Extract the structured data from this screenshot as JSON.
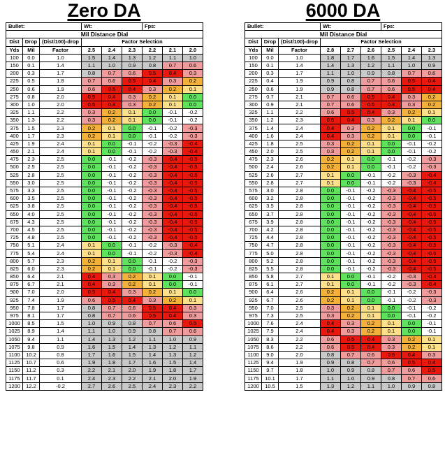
{
  "left": {
    "title": "Zero DA",
    "bullet_label": "Bullet:",
    "wt_label": "Wt:",
    "fps_label": "Fps:",
    "table_title": "Mil Distance Dial",
    "headers": [
      "Dist",
      "Drop",
      "(Dist/100)-drop",
      "Factor Selection"
    ],
    "subheaders": [
      "Yds",
      "Mil",
      "Factor"
    ],
    "factors": [
      "2.5",
      "2.4",
      "2.3",
      "2.2",
      "2.1",
      "2.0"
    ],
    "rows": [
      [
        "100",
        "0.0",
        "1.0",
        "1.5",
        "1.4",
        "1.3",
        "1.2",
        "1.1",
        "1.0"
      ],
      [
        "150",
        "0.1",
        "1.4",
        "1.1",
        "1.0",
        "0.9",
        "0.8",
        "0.7",
        "0.6"
      ],
      [
        "200",
        "0.3",
        "1.7",
        "0.8",
        "0.7",
        "0.6",
        "0.5",
        "0.4",
        "0.3"
      ],
      [
        "225",
        "0.5",
        "1.8",
        "0.7",
        "0.6",
        "0.5",
        "0.4",
        "0.3",
        "0.2"
      ],
      [
        "250",
        "0.6",
        "1.9",
        "0.6",
        "0.5",
        "0.4",
        "0.3",
        "0.2",
        "0.1"
      ],
      [
        "275",
        "0.8",
        "2.0",
        "0.5",
        "0.4",
        "0.3",
        "0.2",
        "0.1",
        "0.0"
      ],
      [
        "300",
        "1.0",
        "2.0",
        "0.5",
        "0.4",
        "0.3",
        "0.2",
        "0.1",
        "0.0"
      ],
      [
        "325",
        "1.1",
        "2.2",
        "0.3",
        "0.2",
        "0.1",
        "0.0",
        "-0.1",
        "-0.2"
      ],
      [
        "350",
        "1.3",
        "2.2",
        "0.3",
        "0.2",
        "0.1",
        "0.0",
        "-0.1",
        "-0.2"
      ],
      [
        "375",
        "1.5",
        "2.3",
        "0.2",
        "0.1",
        "0.0",
        "-0.1",
        "-0.2",
        "-0.3"
      ],
      [
        "400",
        "1.7",
        "2.3",
        "0.2",
        "0.1",
        "0.0",
        "-0.1",
        "-0.2",
        "-0.3"
      ],
      [
        "425",
        "1.9",
        "2.4",
        "0.1",
        "0.0",
        "-0.1",
        "-0.2",
        "-0.3",
        "-0.4"
      ],
      [
        "450",
        "2.1",
        "2.4",
        "0.1",
        "0.0",
        "-0.1",
        "-0.2",
        "-0.3",
        "-0.4"
      ],
      [
        "475",
        "2.3",
        "2.5",
        "0.0",
        "-0.1",
        "-0.2",
        "-0.3",
        "-0.4",
        "-0.5"
      ],
      [
        "500",
        "2.5",
        "2.5",
        "0.0",
        "-0.1",
        "-0.2",
        "-0.3",
        "-0.4",
        "-0.5"
      ],
      [
        "525",
        "2.8",
        "2.5",
        "0.0",
        "-0.1",
        "-0.2",
        "-0.3",
        "-0.4",
        "-0.5"
      ],
      [
        "550",
        "3.0",
        "2.5",
        "0.0",
        "-0.1",
        "-0.2",
        "-0.3",
        "-0.4",
        "-0.5"
      ],
      [
        "575",
        "3.3",
        "2.5",
        "0.0",
        "-0.1",
        "-0.2",
        "-0.3",
        "-0.4",
        "-0.5"
      ],
      [
        "600",
        "3.5",
        "2.5",
        "0.0",
        "-0.1",
        "-0.2",
        "-0.3",
        "-0.4",
        "-0.5"
      ],
      [
        "625",
        "3.8",
        "2.5",
        "0.0",
        "-0.1",
        "-0.2",
        "-0.3",
        "-0.4",
        "-0.5"
      ],
      [
        "650",
        "4.0",
        "2.5",
        "0.0",
        "-0.1",
        "-0.2",
        "-0.3",
        "-0.4",
        "-0.5"
      ],
      [
        "675",
        "4.3",
        "2.5",
        "0.0",
        "-0.1",
        "-0.2",
        "-0.3",
        "-0.4",
        "-0.5"
      ],
      [
        "700",
        "4.5",
        "2.5",
        "0.0",
        "-0.1",
        "-0.2",
        "-0.3",
        "-0.4",
        "-0.5"
      ],
      [
        "725",
        "4.8",
        "2.5",
        "0.0",
        "-0.1",
        "-0.2",
        "-0.3",
        "-0.4",
        "-0.5"
      ],
      [
        "750",
        "5.1",
        "2.4",
        "0.1",
        "0.0",
        "-0.1",
        "-0.2",
        "-0.3",
        "-0.4"
      ],
      [
        "775",
        "5.4",
        "2.4",
        "0.1",
        "0.0",
        "-0.1",
        "-0.2",
        "-0.3",
        "-0.4"
      ],
      [
        "800",
        "5.7",
        "2.3",
        "0.2",
        "0.1",
        "0.0",
        "-0.1",
        "-0.2",
        "-0.3"
      ],
      [
        "825",
        "6.0",
        "2.3",
        "0.2",
        "0.1",
        "0.0",
        "-0.1",
        "-0.2",
        "-0.3"
      ],
      [
        "850",
        "6.4",
        "2.1",
        "0.4",
        "0.3",
        "0.2",
        "0.1",
        "0.0",
        "-0.1"
      ],
      [
        "875",
        "6.7",
        "2.1",
        "0.4",
        "0.3",
        "0.2",
        "0.1",
        "0.0",
        "-0.1"
      ],
      [
        "900",
        "7.0",
        "2.0",
        "0.5",
        "0.4",
        "0.3",
        "0.2",
        "0.1",
        "0.0"
      ],
      [
        "925",
        "7.4",
        "1.9",
        "0.6",
        "0.5",
        "0.4",
        "0.3",
        "0.2",
        "0.1"
      ],
      [
        "950",
        "7.8",
        "1.7",
        "0.8",
        "0.7",
        "0.6",
        "0.5",
        "0.4",
        "0.3"
      ],
      [
        "975",
        "8.1",
        "1.7",
        "0.8",
        "0.7",
        "0.6",
        "0.5",
        "0.4",
        "0.3"
      ],
      [
        "1000",
        "8.5",
        "1.5",
        "1.0",
        "0.9",
        "0.8",
        "0.7",
        "0.6",
        "0.5"
      ],
      [
        "1025",
        "8.9",
        "1.4",
        "1.1",
        "1.0",
        "0.9",
        "0.8",
        "0.7",
        "0.6"
      ],
      [
        "1050",
        "9.4",
        "1.1",
        "1.4",
        "1.3",
        "1.2",
        "1.1",
        "1.0",
        "0.9"
      ],
      [
        "1075",
        "9.8",
        "0.9",
        "1.6",
        "1.5",
        "1.4",
        "1.3",
        "1.2",
        "1.1"
      ],
      [
        "1100",
        "10.2",
        "0.8",
        "1.7",
        "1.6",
        "1.5",
        "1.4",
        "1.3",
        "1.2"
      ],
      [
        "1125",
        "10.7",
        "0.6",
        "1.9",
        "1.8",
        "1.7",
        "1.6",
        "1.5",
        "1.4"
      ],
      [
        "1150",
        "11.2",
        "0.3",
        "2.2",
        "2.1",
        "2.0",
        "1.9",
        "1.8",
        "1.7"
      ],
      [
        "1175",
        "11.7",
        "0.1",
        "2.4",
        "2.3",
        "2.2",
        "2.1",
        "2.0",
        "1.9"
      ],
      [
        "1200",
        "12.2",
        "-0.2",
        "2.7",
        "2.6",
        "2.5",
        "2.4",
        "2.3",
        "2.2"
      ]
    ]
  },
  "right": {
    "title": "6000 DA",
    "bullet_label": "Bullet:",
    "wt_label": "Wt:",
    "fps_label": "Fps:",
    "table_title": "Mil Distance Dial",
    "headers": [
      "Dist",
      "Drop",
      "(Dist/100)-drop",
      "Factor Selection"
    ],
    "subheaders": [
      "Yds",
      "Mil",
      "Factor"
    ],
    "factors": [
      "2.8",
      "2.7",
      "2.6",
      "2.5",
      "2.4",
      "2.3"
    ],
    "rows": [
      [
        "100",
        "0.0",
        "1.0",
        "1.8",
        "1.7",
        "1.6",
        "1.5",
        "1.4",
        "1.3"
      ],
      [
        "150",
        "0.1",
        "1.4",
        "1.4",
        "1.3",
        "1.2",
        "1.1",
        "1.0",
        "0.9"
      ],
      [
        "200",
        "0.3",
        "1.7",
        "1.1",
        "1.0",
        "0.9",
        "0.8",
        "0.7",
        "0.6"
      ],
      [
        "225",
        "0.4",
        "1.9",
        "0.9",
        "0.8",
        "0.7",
        "0.6",
        "0.5",
        "0.4"
      ],
      [
        "250",
        "0.6",
        "1.9",
        "0.9",
        "0.8",
        "0.7",
        "0.6",
        "0.5",
        "0.4"
      ],
      [
        "275",
        "0.7",
        "2.1",
        "0.7",
        "0.6",
        "0.5",
        "0.4",
        "0.3",
        "0.2"
      ],
      [
        "300",
        "0.9",
        "2.1",
        "0.7",
        "0.6",
        "0.5",
        "0.4",
        "0.3",
        "0.2"
      ],
      [
        "325",
        "1.1",
        "2.2",
        "0.6",
        "0.5",
        "0.4",
        "0.3",
        "0.2",
        "0.1"
      ],
      [
        "350",
        "1.2",
        "2.3",
        "0.5",
        "0.4",
        "0.3",
        "0.2",
        "0.1",
        "0.0"
      ],
      [
        "375",
        "1.4",
        "2.4",
        "0.4",
        "0.3",
        "0.2",
        "0.1",
        "0.0",
        "-0.1"
      ],
      [
        "400",
        "1.6",
        "2.4",
        "0.4",
        "0.3",
        "0.2",
        "0.1",
        "0.0",
        "-0.1"
      ],
      [
        "425",
        "1.8",
        "2.5",
        "0.3",
        "0.2",
        "0.1",
        "0.0",
        "-0.1",
        "-0.2"
      ],
      [
        "450",
        "2.0",
        "2.5",
        "0.3",
        "0.2",
        "0.1",
        "0.0",
        "-0.1",
        "-0.2"
      ],
      [
        "475",
        "2.3",
        "2.6",
        "0.2",
        "0.1",
        "0.0",
        "-0.1",
        "-0.2",
        "-0.3"
      ],
      [
        "500",
        "2.4",
        "2.6",
        "0.2",
        "0.1",
        "0.0",
        "-0.1",
        "-0.2",
        "-0.3"
      ],
      [
        "525",
        "2.6",
        "2.7",
        "0.1",
        "0.0",
        "-0.1",
        "-0.2",
        "-0.3",
        "-0.4"
      ],
      [
        "550",
        "2.8",
        "2.7",
        "0.1",
        "0.0",
        "-0.1",
        "-0.2",
        "-0.3",
        "-0.4"
      ],
      [
        "575",
        "3.0",
        "2.8",
        "0.0",
        "-0.1",
        "-0.2",
        "-0.3",
        "-0.4",
        "-0.5"
      ],
      [
        "600",
        "3.2",
        "2.8",
        "0.0",
        "-0.1",
        "-0.2",
        "-0.3",
        "-0.4",
        "-0.5"
      ],
      [
        "625",
        "3.5",
        "2.8",
        "0.0",
        "-0.1",
        "-0.2",
        "-0.3",
        "-0.4",
        "-0.5"
      ],
      [
        "650",
        "3.7",
        "2.8",
        "0.0",
        "-0.1",
        "-0.2",
        "-0.3",
        "-0.4",
        "-0.5"
      ],
      [
        "675",
        "3.9",
        "2.8",
        "0.0",
        "-0.1",
        "-0.2",
        "-0.3",
        "-0.4",
        "-0.5"
      ],
      [
        "700",
        "4.2",
        "2.8",
        "0.0",
        "-0.1",
        "-0.2",
        "-0.3",
        "-0.4",
        "-0.5"
      ],
      [
        "725",
        "4.4",
        "2.8",
        "0.0",
        "-0.1",
        "-0.2",
        "-0.3",
        "-0.4",
        "-0.5"
      ],
      [
        "750",
        "4.7",
        "2.8",
        "0.0",
        "-0.1",
        "-0.2",
        "-0.3",
        "-0.4",
        "-0.5"
      ],
      [
        "775",
        "5.0",
        "2.8",
        "0.0",
        "-0.1",
        "-0.2",
        "-0.3",
        "-0.4",
        "-0.5"
      ],
      [
        "800",
        "5.2",
        "2.8",
        "0.0",
        "-0.1",
        "-0.2",
        "-0.3",
        "-0.4",
        "-0.5"
      ],
      [
        "825",
        "5.5",
        "2.8",
        "0.0",
        "-0.1",
        "-0.2",
        "-0.3",
        "-0.4",
        "-0.5"
      ],
      [
        "850",
        "5.8",
        "2.7",
        "0.1",
        "0.0",
        "-0.1",
        "-0.2",
        "-0.3",
        "-0.4"
      ],
      [
        "875",
        "6.1",
        "2.7",
        "0.1",
        "0.0",
        "-0.1",
        "-0.2",
        "-0.3",
        "-0.4"
      ],
      [
        "900",
        "6.4",
        "2.6",
        "0.2",
        "0.1",
        "0.0",
        "-0.1",
        "-0.2",
        "-0.3"
      ],
      [
        "925",
        "6.7",
        "2.6",
        "0.2",
        "0.1",
        "0.0",
        "-0.1",
        "-0.2",
        "-0.3"
      ],
      [
        "950",
        "7.0",
        "2.5",
        "0.3",
        "0.2",
        "0.1",
        "0.0",
        "-0.1",
        "-0.2"
      ],
      [
        "975",
        "7.3",
        "2.5",
        "0.3",
        "0.2",
        "0.1",
        "0.0",
        "-0.1",
        "-0.2"
      ],
      [
        "1000",
        "7.6",
        "2.4",
        "0.4",
        "0.3",
        "0.2",
        "0.1",
        "0.0",
        "-0.1"
      ],
      [
        "1025",
        "7.9",
        "2.4",
        "0.4",
        "0.3",
        "0.2",
        "0.1",
        "0.0",
        "-0.1"
      ],
      [
        "1050",
        "8.3",
        "2.2",
        "0.6",
        "0.5",
        "0.4",
        "0.3",
        "0.2",
        "0.1"
      ],
      [
        "1075",
        "8.6",
        "2.2",
        "0.6",
        "0.5",
        "0.4",
        "0.3",
        "0.2",
        "0.1"
      ],
      [
        "1100",
        "9.0",
        "2.0",
        "0.8",
        "0.7",
        "0.6",
        "0.5",
        "0.4",
        "0.3"
      ],
      [
        "1125",
        "9.4",
        "1.9",
        "0.9",
        "0.8",
        "0.7",
        "0.6",
        "0.5",
        "0.4"
      ],
      [
        "1150",
        "9.7",
        "1.8",
        "1.0",
        "0.9",
        "0.8",
        "0.7",
        "0.6",
        "0.5"
      ],
      [
        "1175",
        "10.1",
        "1.7",
        "1.1",
        "1.0",
        "0.9",
        "0.8",
        "0.7",
        "0.6"
      ],
      [
        "1200",
        "10.5",
        "1.5",
        "1.3",
        "1.2",
        "1.1",
        "1.0",
        "0.9",
        "0.8"
      ]
    ]
  }
}
